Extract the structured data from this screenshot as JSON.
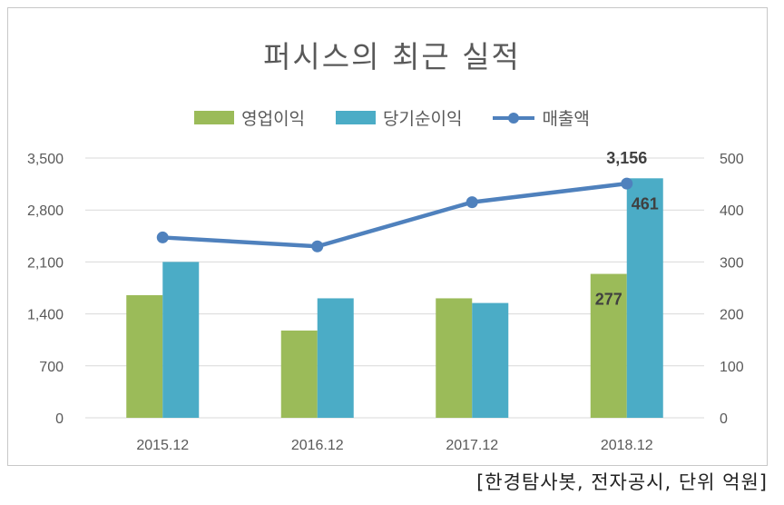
{
  "source_note": "[한경탐사봇, 전자공시, 단위 억원]",
  "colors": {
    "operating_profit": "#9BBB59",
    "net_income": "#4BACC6",
    "revenue": "#4F81BD",
    "grid": "#d9d9d9",
    "text": "#595959"
  },
  "chart_data": {
    "type": "bar",
    "title": "퍼시스의 최근 실적",
    "categories": [
      "2015.12",
      "2016.12",
      "2017.12",
      "2018.12"
    ],
    "left_axis": {
      "ticks": [
        "0",
        "700",
        "1,400",
        "2,100",
        "2,800",
        "3,500"
      ],
      "ylim": [
        0,
        3500
      ]
    },
    "right_axis": {
      "ticks": [
        "0",
        "100",
        "200",
        "300",
        "400",
        "500"
      ],
      "ylim": [
        0,
        500
      ]
    },
    "legend_position": "top",
    "series": [
      {
        "name": "영업이익",
        "type": "bar",
        "axis": "right",
        "values": [
          236,
          168,
          230,
          277
        ]
      },
      {
        "name": "당기순이익",
        "type": "bar",
        "axis": "right",
        "values": [
          300,
          230,
          221,
          461
        ]
      },
      {
        "name": "매출액",
        "type": "line",
        "axis": "left",
        "values": [
          2430,
          2310,
          2905,
          3156
        ]
      }
    ],
    "data_labels": [
      {
        "series": "매출액",
        "category": "2018.12",
        "text": "3,156"
      },
      {
        "series": "당기순이익",
        "category": "2018.12",
        "text": "461"
      },
      {
        "series": "영업이익",
        "category": "2018.12",
        "text": "277"
      }
    ]
  }
}
